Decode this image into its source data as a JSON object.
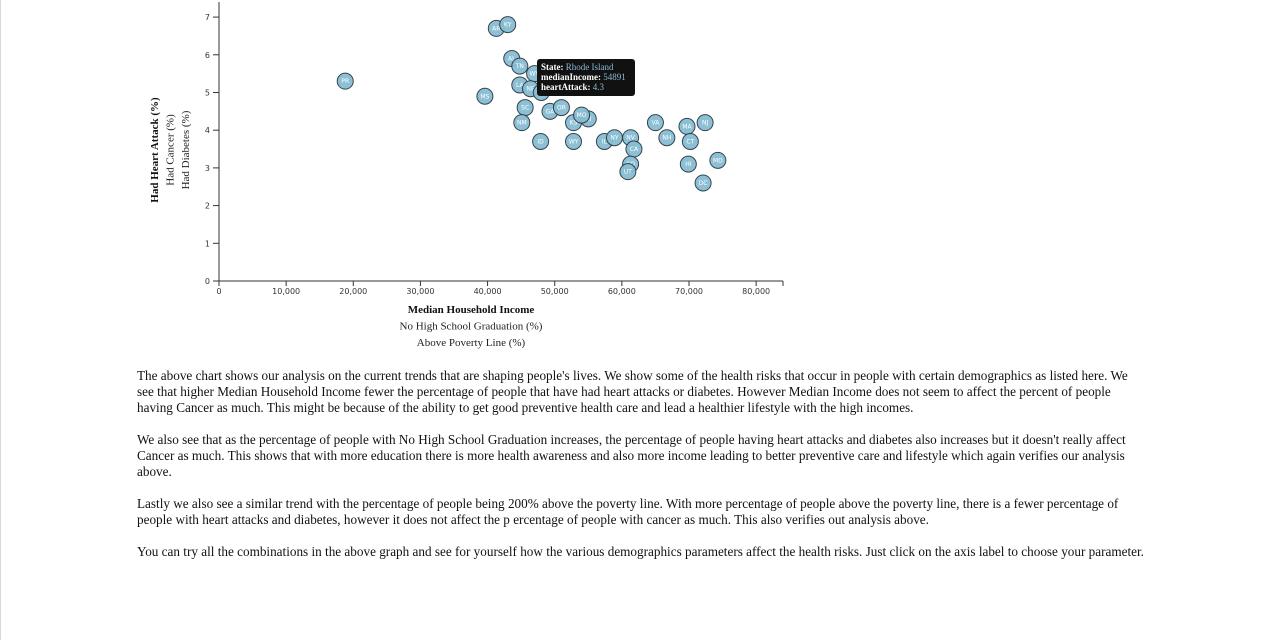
{
  "chart_data": {
    "type": "scatter",
    "x_axis": {
      "labels": [
        "Median Household Income",
        "No High School Graduation (%)",
        "Above Poverty Line (%)"
      ],
      "active": "Median Household Income",
      "range": [
        0,
        84000
      ],
      "ticks": [
        0,
        10000,
        20000,
        30000,
        40000,
        50000,
        60000,
        70000,
        80000
      ],
      "tick_labels": [
        "0",
        "10,000",
        "20,000",
        "30,000",
        "40,000",
        "50,000",
        "60,000",
        "70,000",
        "80,000"
      ]
    },
    "y_axis": {
      "labels": [
        "Had Heart Attack (%)",
        "Had Cancer (%)",
        "Had Diabetes (%)"
      ],
      "active": "Had Heart Attack (%)",
      "range": [
        0,
        7.4
      ],
      "ticks": [
        0,
        1,
        2,
        3,
        4,
        5,
        6,
        7
      ],
      "tick_labels": [
        "0",
        "1",
        "2",
        "3",
        "4",
        "5",
        "6",
        "7"
      ]
    },
    "points": [
      {
        "state": "AR",
        "x": 41300,
        "y": 6.7
      },
      {
        "state": "KY",
        "x": 43000,
        "y": 6.8
      },
      {
        "state": "AL",
        "x": 43600,
        "y": 5.9
      },
      {
        "state": "TN",
        "x": 44800,
        "y": 5.7
      },
      {
        "state": "WV",
        "x": 47000,
        "y": 5.5
      },
      {
        "state": "LA",
        "x": 44800,
        "y": 5.2
      },
      {
        "state": "NE",
        "x": 46400,
        "y": 5.1
      },
      {
        "state": "PR",
        "x": 18800,
        "y": 5.3
      },
      {
        "state": "MS",
        "x": 39600,
        "y": 4.9
      },
      {
        "state": "SC",
        "x": 45600,
        "y": 4.6
      },
      {
        "state": "OK",
        "x": 48000,
        "y": 5.0
      },
      {
        "state": "GA",
        "x": 49300,
        "y": 4.5
      },
      {
        "state": "OR",
        "x": 51000,
        "y": 4.6
      },
      {
        "state": "KS",
        "x": 52800,
        "y": 4.2
      },
      {
        "state": "RI",
        "x": 55000,
        "y": 4.3
      },
      {
        "state": "MO",
        "x": 54000,
        "y": 4.4
      },
      {
        "state": "NM",
        "x": 45100,
        "y": 4.2
      },
      {
        "state": "ID",
        "x": 47900,
        "y": 3.7
      },
      {
        "state": "WY",
        "x": 52800,
        "y": 3.7
      },
      {
        "state": "IL",
        "x": 57400,
        "y": 3.7
      },
      {
        "state": "NY",
        "x": 58900,
        "y": 3.8
      },
      {
        "state": "NV",
        "x": 61300,
        "y": 3.8
      },
      {
        "state": "CA",
        "x": 61800,
        "y": 3.5
      },
      {
        "state": "CO",
        "x": 61300,
        "y": 3.1
      },
      {
        "state": "UT",
        "x": 60900,
        "y": 2.9
      },
      {
        "state": "VA",
        "x": 65000,
        "y": 4.2
      },
      {
        "state": "NH",
        "x": 66700,
        "y": 3.8
      },
      {
        "state": "MA",
        "x": 69700,
        "y": 4.1
      },
      {
        "state": "CT",
        "x": 70200,
        "y": 3.7
      },
      {
        "state": "NJ",
        "x": 72400,
        "y": 4.2
      },
      {
        "state": "HI",
        "x": 69900,
        "y": 3.1
      },
      {
        "state": "MD",
        "x": 74300,
        "y": 3.2
      },
      {
        "state": "DC",
        "x": 72100,
        "y": 2.6
      }
    ],
    "tooltip": {
      "state_label": "State:",
      "state_value": "Rhode Island",
      "x_label": "medianIncome:",
      "x_value": "54891",
      "y_label": "heartAttack:",
      "y_value": "4.3"
    }
  },
  "analysis": {
    "paragraphs": [
      "The above chart shows our analysis on the current trends that are shaping people's lives. We show some of the health risks that occur in people with certain demographics as listed here. We see that higher Median Household Income fewer the percentage of people that have had heart attacks or diabetes. However Median Income does not seem to affect the percent of people having Cancer as much. This might be because of the ability to get good preventive health care and lead a healthier lifestyle with the high incomes.",
      "We also see that as the percentage of people with No High School Graduation increases, the percentage of people having heart attacks and diabetes also increases but it doesn't really affect Cancer as much. This shows that with more education there is more health awareness and also more income leading to better preventive care and lifestyle which again verifies our analysis above.",
      "Lastly we also see a similar trend with the percentage of people being 200% above the poverty line. With more percentage of people above the poverty line, there is a fewer percentage of people with heart attacks and diabetes, however it does not affect the p ercentage of people with cancer as much. This also verifies out analysis above.",
      "You can try all the combinations in the above graph and see for yourself how the various demographics parameters affect the health risks. Just click on the axis label to choose your parameter."
    ]
  }
}
